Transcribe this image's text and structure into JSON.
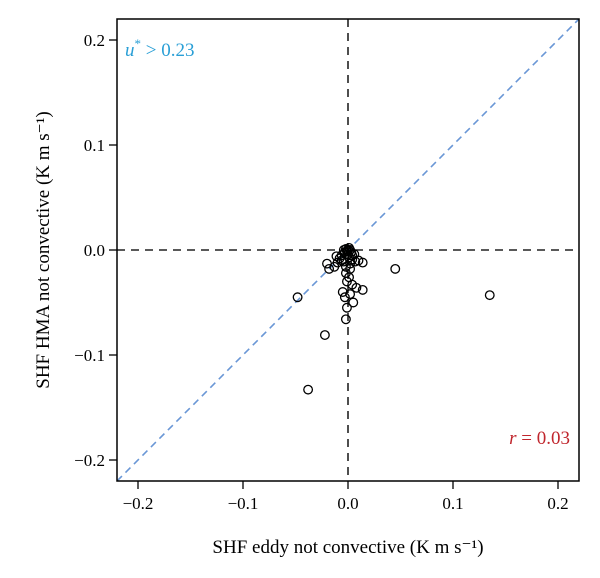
{
  "chart_data": {
    "type": "scatter",
    "title": "",
    "xlabel": "SHF eddy not convective (K m s⁻¹)",
    "ylabel": "SHF HMA not convective (K m s⁻¹)",
    "xlim": [
      -0.22,
      0.22
    ],
    "ylim": [
      -0.22,
      0.22
    ],
    "xticks": [
      -0.2,
      -0.1,
      0.0,
      0.1,
      0.2
    ],
    "yticks": [
      -0.2,
      -0.1,
      0.0,
      0.1,
      0.2
    ],
    "xtick_labels": [
      "−0.2",
      "−0.1",
      "0.0",
      "0.1",
      "0.2"
    ],
    "ytick_labels": [
      "−0.2",
      "−0.1",
      "0.0",
      "0.1",
      "0.2"
    ],
    "grid": false,
    "reference_lines": {
      "identity": true,
      "x_zero": true,
      "y_zero": true
    },
    "annotations": {
      "top_left_label": "u* > 0.23",
      "bottom_right_label": "r = 0.03"
    },
    "colors": {
      "identity_line": "#6a97d6",
      "zero_lines": "#222222",
      "points": "#000000",
      "top_left_label": "#2a9fd6",
      "bottom_right_label": "#c0262d"
    },
    "points": [
      {
        "x": 0.135,
        "y": -0.043
      },
      {
        "x": 0.045,
        "y": -0.018
      },
      {
        "x": -0.048,
        "y": -0.045
      },
      {
        "x": -0.022,
        "y": -0.081
      },
      {
        "x": -0.038,
        "y": -0.133
      },
      {
        "x": -0.002,
        "y": -0.066
      },
      {
        "x": -0.001,
        "y": -0.055
      },
      {
        "x": 0.005,
        "y": -0.05
      },
      {
        "x": -0.003,
        "y": -0.045
      },
      {
        "x": 0.002,
        "y": -0.042
      },
      {
        "x": -0.005,
        "y": -0.04
      },
      {
        "x": 0.014,
        "y": -0.038
      },
      {
        "x": 0.008,
        "y": -0.036
      },
      {
        "x": 0.004,
        "y": -0.033
      },
      {
        "x": -0.001,
        "y": -0.03
      },
      {
        "x": 0.001,
        "y": -0.026
      },
      {
        "x": -0.002,
        "y": -0.022
      },
      {
        "x": 0.002,
        "y": -0.018
      },
      {
        "x": -0.02,
        "y": -0.013
      },
      {
        "x": -0.018,
        "y": -0.018
      },
      {
        "x": -0.013,
        "y": -0.016
      },
      {
        "x": -0.01,
        "y": -0.012
      },
      {
        "x": -0.008,
        "y": -0.008
      },
      {
        "x": -0.006,
        "y": -0.005
      },
      {
        "x": -0.011,
        "y": -0.006
      },
      {
        "x": 0.014,
        "y": -0.012
      },
      {
        "x": 0.01,
        "y": -0.01
      },
      {
        "x": 0.007,
        "y": -0.011
      },
      {
        "x": 0.004,
        "y": -0.009
      },
      {
        "x": 0.002,
        "y": -0.013
      },
      {
        "x": -0.004,
        "y": -0.011
      },
      {
        "x": -0.003,
        "y": -0.002
      },
      {
        "x": 0.0,
        "y": -0.004
      },
      {
        "x": 0.003,
        "y": -0.002
      },
      {
        "x": -0.002,
        "y": 0.001
      },
      {
        "x": 0.001,
        "y": 0.002
      },
      {
        "x": 0.0,
        "y": 0.0
      },
      {
        "x": -0.001,
        "y": -0.001
      },
      {
        "x": 0.002,
        "y": 0.0
      },
      {
        "x": -0.004,
        "y": 0.0
      },
      {
        "x": 0.004,
        "y": -0.005
      },
      {
        "x": -0.006,
        "y": -0.01
      },
      {
        "x": 0.001,
        "y": -0.007
      },
      {
        "x": -0.002,
        "y": -0.016
      },
      {
        "x": 0.006,
        "y": -0.004
      }
    ]
  }
}
